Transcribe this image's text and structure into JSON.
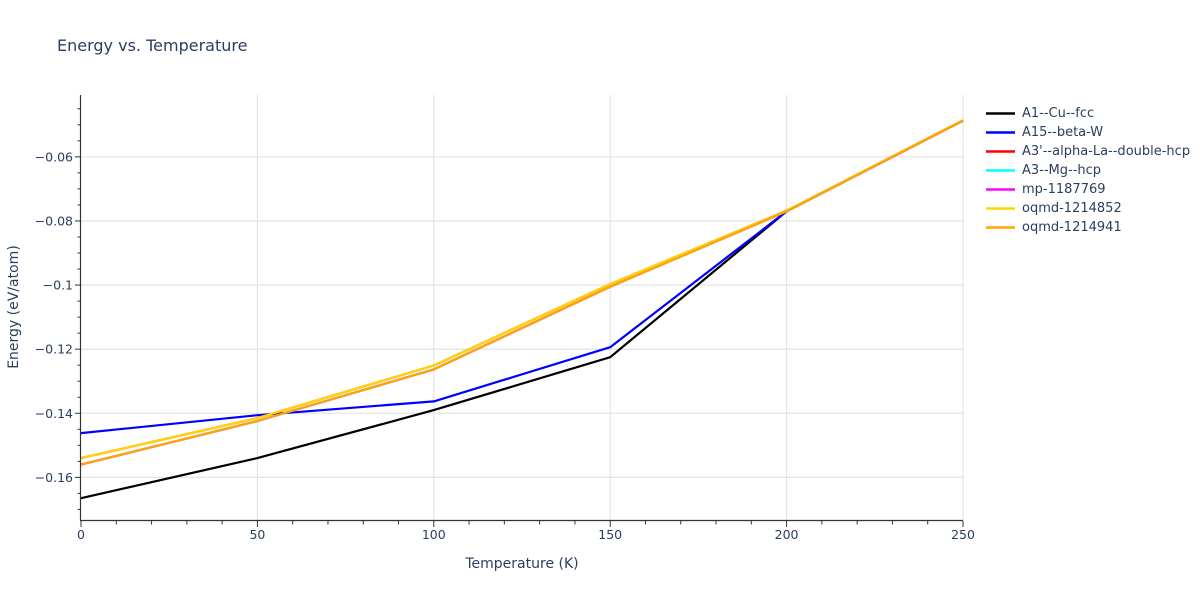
{
  "colors": {
    "text": "#2a3f5f",
    "axis": "#333333",
    "grid": "#e6e6e6",
    "background": "#ffffff"
  },
  "chart_data": {
    "type": "line",
    "title": "Energy vs. Temperature",
    "xlabel": "Temperature (K)",
    "ylabel": "Energy (eV/atom)",
    "x": [
      0,
      50,
      100,
      150,
      200,
      250
    ],
    "xlim": [
      0,
      250
    ],
    "ylim": [
      -0.1733,
      -0.0407
    ],
    "x_major_ticks": [
      0,
      50,
      100,
      150,
      200,
      250
    ],
    "x_tick_labels": [
      "0",
      "50",
      "100",
      "150",
      "200",
      "250"
    ],
    "x_minor_step": 10,
    "y_major_ticks": [
      -0.06,
      -0.08,
      -0.1,
      -0.12,
      -0.14,
      -0.16
    ],
    "y_tick_labels": [
      "−0.06",
      "−0.08",
      "−0.1",
      "−0.12",
      "−0.14",
      "−0.16"
    ],
    "y_minor_step": 0.005,
    "grid": true,
    "legend_position": "right-outside",
    "series": [
      {
        "name": "A1--Cu--fcc",
        "color": "#000000",
        "values": [
          -0.1665,
          -0.154,
          -0.139,
          -0.1225,
          -0.077,
          -0.0487
        ]
      },
      {
        "name": "A15--beta-W",
        "color": "#0000ff",
        "values": [
          -0.1462,
          -0.1406,
          -0.1363,
          -0.1194,
          -0.077,
          -0.0487
        ]
      },
      {
        "name": "A3'--alpha-La--double-hcp",
        "color": "#ff0000",
        "values": [
          -0.154,
          -0.1415,
          -0.1251,
          -0.0997,
          -0.0768,
          -0.0486
        ]
      },
      {
        "name": "A3--Mg--hcp",
        "color": "#00ffff",
        "values": [
          -0.156,
          -0.1424,
          -0.1263,
          -0.1005,
          -0.077,
          -0.0487
        ]
      },
      {
        "name": "mp-1187769",
        "color": "#ff00ff",
        "values": [
          -0.156,
          -0.1424,
          -0.1263,
          -0.1005,
          -0.077,
          -0.0487
        ]
      },
      {
        "name": "oqmd-1214852",
        "color": "#ffd700",
        "values": [
          -0.154,
          -0.1415,
          -0.1251,
          -0.0997,
          -0.0768,
          -0.0486
        ]
      },
      {
        "name": "oqmd-1214941",
        "color": "#ffa500",
        "values": [
          -0.156,
          -0.1424,
          -0.1263,
          -0.1005,
          -0.077,
          -0.0487
        ]
      }
    ],
    "overlap_note": "The red, cyan and magenta series are exactly overlapped by the gold/orange series; all series converge near T=200 K and continue as a single line (orange on top) to T=250 K."
  }
}
